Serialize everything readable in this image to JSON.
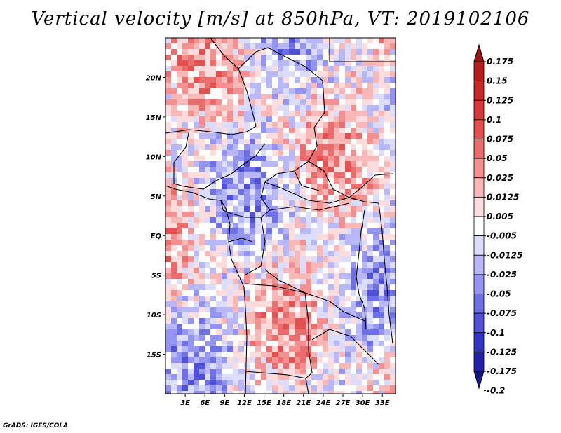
{
  "title": "Vertical velocity [m/s] at 850hPa, VT: 2019102106",
  "footer": "GrADS: IGES/COLA",
  "map": {
    "lat_labels": [
      "20N",
      "15N",
      "10N",
      "5N",
      "EQ",
      "5S",
      "10S",
      "15S"
    ],
    "lon_labels": [
      "3E",
      "6E",
      "9E",
      "12E",
      "15E",
      "18E",
      "21E",
      "24E",
      "27E",
      "30E",
      "33E"
    ],
    "lat_range": [
      -20,
      25
    ],
    "lon_range": [
      0,
      35
    ]
  },
  "colorbar": {
    "labels": [
      "0.175",
      "0.15",
      "0.125",
      "0.1",
      "0.075",
      "0.05",
      "0.025",
      "0.0125",
      "0.005",
      "-0.005",
      "-0.0125",
      "-0.025",
      "-0.05",
      "-0.075",
      "-0.1",
      "-0.125",
      "-0.175",
      "-0.2"
    ],
    "colors": [
      "#9e1414",
      "#b51c1c",
      "#c82828",
      "#d83838",
      "#e25050",
      "#ea6c6c",
      "#f49090",
      "#f8b8b8",
      "#fcdcdc",
      "#ffffff",
      "#dcdcfc",
      "#b8b8f8",
      "#9494f2",
      "#7070e6",
      "#5050d8",
      "#3434c4",
      "#2020aa",
      "#141488"
    ]
  }
}
